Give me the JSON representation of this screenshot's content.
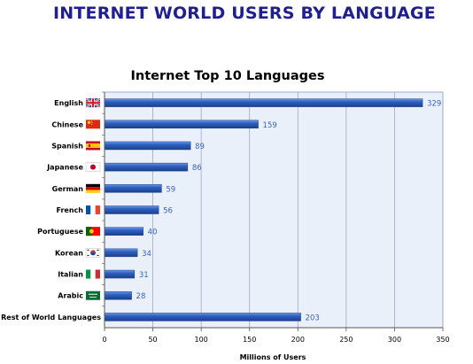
{
  "page": {
    "headline": "INTERNET WORLD USERS BY LANGUAGE"
  },
  "chart_data": {
    "type": "bar",
    "orientation": "horizontal",
    "title": "Internet Top 10 Languages",
    "xlabel": "Millions of Users",
    "ylabel": "",
    "xlim": [
      0,
      350
    ],
    "xticks": [
      0,
      50,
      100,
      150,
      200,
      250,
      300,
      350
    ],
    "grid": "vertical",
    "legend": "none",
    "categories": [
      "English",
      "Chinese",
      "Spanish",
      "Japanese",
      "German",
      "French",
      "Portuguese",
      "Korean",
      "Italian",
      "Arabic",
      "Rest of World Languages"
    ],
    "values": [
      329,
      159,
      89,
      86,
      59,
      56,
      40,
      34,
      31,
      28,
      203
    ],
    "flag_icons": [
      "uk-flag-icon",
      "china-flag-icon",
      "spain-flag-icon",
      "japan-flag-icon",
      "germany-flag-icon",
      "france-flag-icon",
      "portugal-flag-icon",
      "korea-flag-icon",
      "italy-flag-icon",
      "saudi-flag-icon",
      ""
    ],
    "colors": {
      "bar": "#2f62c4",
      "bar_dark": "#1c3f86",
      "bar_light": "#6f9ae6",
      "plot_bg": "#eaf0fa",
      "grid": "#9aa9c4",
      "value_text": "#3b63b6",
      "headline": "#1f1f8f"
    }
  }
}
